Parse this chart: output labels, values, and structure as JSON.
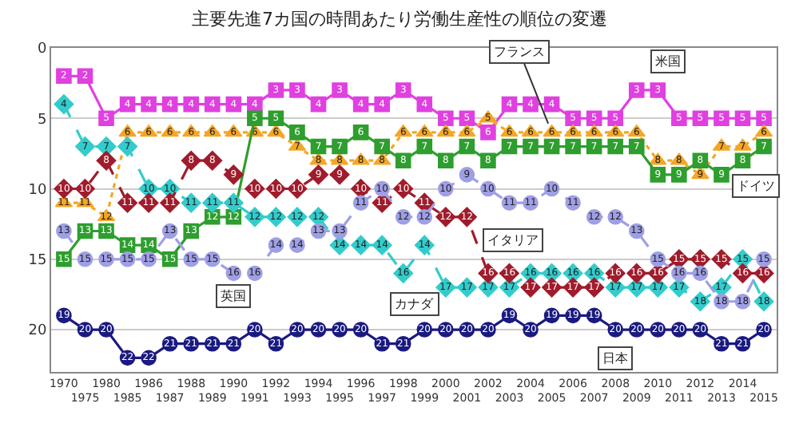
{
  "chart_data": {
    "type": "line",
    "title": "主要先進7カ国の時間あたり労働生産性の順位の変遷",
    "categories": [
      "1970",
      "1975",
      "1980",
      "1985",
      "1986",
      "1987",
      "1988",
      "1989",
      "1990",
      "1991",
      "1992",
      "1993",
      "1994",
      "1995",
      "1996",
      "1997",
      "1998",
      "1999",
      "2000",
      "2001",
      "2002",
      "2003",
      "2004",
      "2005",
      "2006",
      "2007",
      "2008",
      "2009",
      "2010",
      "2011",
      "2012",
      "2013",
      "2014",
      "2015"
    ],
    "ylim": [
      23,
      0
    ],
    "yticks": [
      0,
      5,
      10,
      15,
      20
    ],
    "grid": "y",
    "data_labels": true,
    "series": [
      {
        "name": "米国",
        "color": "#e040e0",
        "marker": "square",
        "line_style": "solid",
        "values": [
          2,
          2,
          5,
          4,
          4,
          4,
          4,
          4,
          4,
          4,
          3,
          3,
          4,
          3,
          4,
          4,
          3,
          4,
          5,
          5,
          6,
          4,
          4,
          4,
          5,
          5,
          5,
          3,
          3,
          5,
          5,
          5,
          5,
          5
        ]
      },
      {
        "name": "フランス",
        "color": "#f5a623",
        "marker": "triangle",
        "line_style": "dotted",
        "values": [
          11,
          11,
          12,
          6,
          6,
          6,
          6,
          6,
          6,
          6,
          6,
          7,
          8,
          8,
          8,
          8,
          6,
          6,
          6,
          6,
          5,
          6,
          6,
          6,
          6,
          6,
          6,
          6,
          8,
          8,
          9,
          7,
          7,
          6
        ]
      },
      {
        "name": "ドイツ",
        "color": "#2e9e2e",
        "marker": "square",
        "line_style": "solid",
        "values": [
          15,
          13,
          13,
          14,
          14,
          15,
          13,
          12,
          12,
          5,
          5,
          6,
          7,
          7,
          6,
          7,
          8,
          7,
          8,
          7,
          8,
          7,
          7,
          7,
          7,
          7,
          7,
          7,
          9,
          9,
          8,
          9,
          8,
          7
        ]
      },
      {
        "name": "カナダ",
        "color": "#33cccc",
        "marker": "diamond",
        "line_style": "dashed",
        "values": [
          4,
          7,
          7,
          7,
          10,
          10,
          11,
          11,
          11,
          12,
          12,
          12,
          12,
          14,
          14,
          14,
          16,
          14,
          17,
          17,
          17,
          17,
          16,
          16,
          16,
          16,
          17,
          17,
          17,
          17,
          18,
          17,
          15,
          18
        ]
      },
      {
        "name": "イタリア",
        "color": "#a01c2c",
        "marker": "diamond",
        "line_style": "dashed",
        "values": [
          10,
          10,
          8,
          11,
          11,
          11,
          8,
          8,
          9,
          10,
          10,
          10,
          9,
          9,
          10,
          11,
          10,
          11,
          12,
          12,
          16,
          16,
          17,
          17,
          17,
          17,
          16,
          16,
          16,
          15,
          15,
          15,
          16,
          16
        ]
      },
      {
        "name": "英国",
        "color": "#9f9fe6",
        "marker": "circle",
        "line_style": "dashed",
        "values": [
          13,
          15,
          15,
          15,
          15,
          13,
          15,
          15,
          16,
          16,
          14,
          14,
          13,
          13,
          11,
          10,
          12,
          12,
          10,
          9,
          10,
          11,
          11,
          10,
          11,
          12,
          12,
          13,
          15,
          16,
          16,
          18,
          18,
          15
        ]
      },
      {
        "name": "日本",
        "color": "#1a1a80",
        "marker": "circle",
        "line_style": "solid",
        "values": [
          19,
          20,
          20,
          22,
          22,
          21,
          21,
          21,
          21,
          20,
          21,
          20,
          20,
          20,
          20,
          21,
          21,
          20,
          20,
          20,
          20,
          19,
          20,
          19,
          19,
          19,
          20,
          20,
          20,
          20,
          20,
          21,
          21,
          20
        ]
      }
    ]
  }
}
